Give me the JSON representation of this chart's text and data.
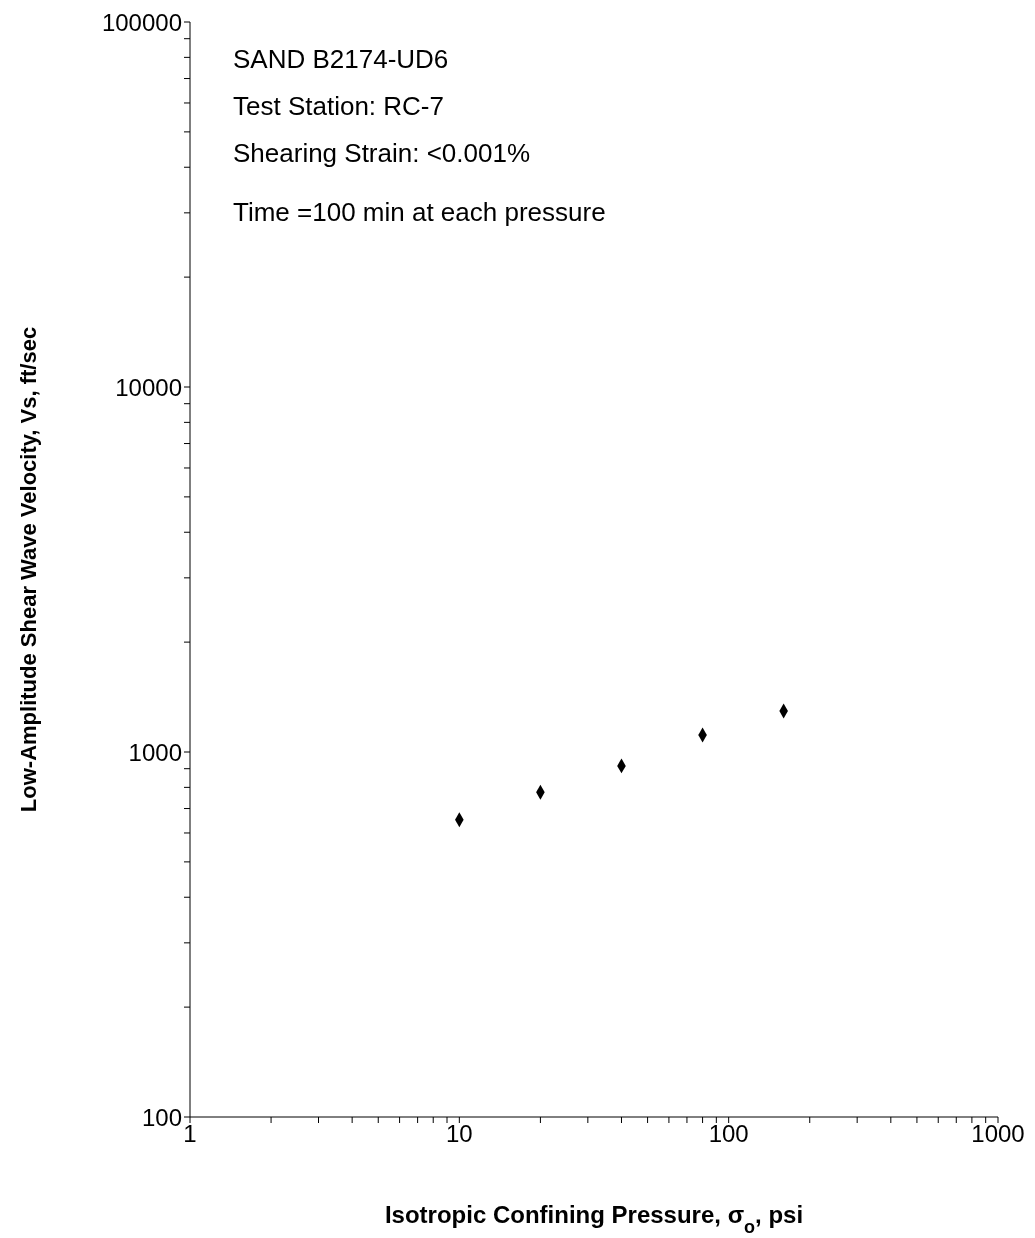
{
  "chart_data": {
    "type": "scatter",
    "xlabel": "Isotropic Confining Pressure, σ$_{o}$, psi",
    "ylabel": "Low-Amplitude Shear Wave Velocity, Vs, ft/sec",
    "annotations": [
      "SAND B2174-UD6",
      "Test Station: RC-7",
      "Shearing Strain: <0.001%",
      "Time =100 min at each pressure"
    ],
    "x": [
      10,
      20,
      40,
      80,
      160
    ],
    "series": [
      {
        "color": "#000000",
        "values": [
          652,
          776,
          916,
          1113,
          1295
        ]
      }
    ],
    "marker": "diamond",
    "log": "xy",
    "xlim": [
      1,
      1000
    ],
    "xticks": [
      1,
      {
        "value": 2,
        "label": null
      },
      {
        "value": 3,
        "label": null
      },
      {
        "value": 4,
        "label": null
      },
      {
        "value": 5,
        "label": null
      },
      {
        "value": 6,
        "label": null
      },
      {
        "value": 7,
        "label": null
      },
      {
        "value": 8,
        "label": null
      },
      {
        "value": 9,
        "label": null
      },
      10,
      {
        "value": 20,
        "label": null
      },
      {
        "value": 30,
        "label": null
      },
      {
        "value": 40,
        "label": null
      },
      {
        "value": 50,
        "label": null
      },
      {
        "value": 60,
        "label": null
      },
      {
        "value": 70,
        "label": null
      },
      {
        "value": 80,
        "label": null
      },
      {
        "value": 90,
        "label": null
      },
      100,
      {
        "value": 200,
        "label": null
      },
      {
        "value": 300,
        "label": null
      },
      {
        "value": 400,
        "label": null
      },
      {
        "value": 500,
        "label": null
      },
      {
        "value": 600,
        "label": null
      },
      {
        "value": 700,
        "label": null
      },
      {
        "value": 800,
        "label": null
      },
      {
        "value": 900,
        "label": null
      },
      1000
    ],
    "ylim": [
      100,
      100000
    ],
    "yticks": [
      100,
      {
        "value": 200,
        "label": null
      },
      {
        "value": 300,
        "label": null
      },
      {
        "value": 400,
        "label": null
      },
      {
        "value": 500,
        "label": null
      },
      {
        "value": 600,
        "label": null
      },
      {
        "value": 700,
        "label": null
      },
      {
        "value": 800,
        "label": null
      },
      {
        "value": 900,
        "label": null
      },
      1000,
      {
        "value": 2000,
        "label": null
      },
      {
        "value": 3000,
        "label": null
      },
      {
        "value": 4000,
        "label": null
      },
      {
        "value": 5000,
        "label": null
      },
      {
        "value": 6000,
        "label": null
      },
      {
        "value": 7000,
        "label": null
      },
      {
        "value": 8000,
        "label": null
      },
      {
        "value": 9000,
        "label": null
      },
      10000,
      {
        "value": 20000,
        "label": null
      },
      {
        "value": 30000,
        "label": null
      },
      {
        "value": 40000,
        "label": null
      },
      {
        "value": 50000,
        "label": null
      },
      {
        "value": 60000,
        "label": null
      },
      {
        "value": 70000,
        "label": null
      },
      {
        "value": 80000,
        "label": null
      },
      {
        "value": 90000,
        "label": null
      },
      100000
    ]
  }
}
